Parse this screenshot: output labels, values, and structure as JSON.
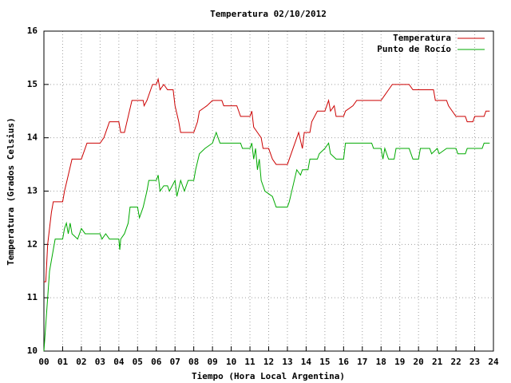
{
  "chart_data": {
    "type": "line",
    "title": "Temperatura 02/10/2012",
    "xlabel": "Tiempo (Hora Local Argentina)",
    "ylabel": "Temperatura (Grados Celsius)",
    "xlim": [
      0,
      24
    ],
    "ylim": [
      10,
      16
    ],
    "xticks": [
      {
        "value": 0,
        "label": "00"
      },
      {
        "value": 1,
        "label": "01"
      },
      {
        "value": 2,
        "label": "02"
      },
      {
        "value": 3,
        "label": "03"
      },
      {
        "value": 4,
        "label": "04"
      },
      {
        "value": 5,
        "label": "05"
      },
      {
        "value": 6,
        "label": "06"
      },
      {
        "value": 7,
        "label": "07"
      },
      {
        "value": 8,
        "label": "08"
      },
      {
        "value": 9,
        "label": "09"
      },
      10,
      11,
      12,
      13,
      14,
      15,
      16,
      17,
      18,
      19,
      20,
      21,
      22,
      23,
      24
    ],
    "yticks": [
      10,
      11,
      12,
      13,
      14,
      15,
      16
    ],
    "grid": true,
    "legend": "top-right",
    "series": [
      {
        "name": "Temperatura",
        "color": "#cc0000",
        "x": [
          0.0,
          0.1,
          0.2,
          0.4,
          0.5,
          1.0,
          1.1,
          1.3,
          1.5,
          2.0,
          2.2,
          2.3,
          3.0,
          3.2,
          3.4,
          3.5,
          4.0,
          4.1,
          4.3,
          4.5,
          4.7,
          5.3,
          5.35,
          5.5,
          5.7,
          5.8,
          6.0,
          6.1,
          6.2,
          6.4,
          6.6,
          6.9,
          7.0,
          7.2,
          7.3,
          8.0,
          8.2,
          8.3,
          8.7,
          9.0,
          9.5,
          9.6,
          10.3,
          10.4,
          10.5,
          11.0,
          11.1,
          11.2,
          11.4,
          11.6,
          11.7,
          12.0,
          12.2,
          12.4,
          13.0,
          13.1,
          13.3,
          13.6,
          13.8,
          13.9,
          14.2,
          14.3,
          14.6,
          15.0,
          15.1,
          15.2,
          15.3,
          15.5,
          15.6,
          16.0,
          16.1,
          16.5,
          16.7,
          18.0,
          18.2,
          18.4,
          18.6,
          19.5,
          19.7,
          20.8,
          20.9,
          21.5,
          21.6,
          21.8,
          22.0,
          22.5,
          22.6,
          22.9,
          23.0,
          23.5,
          23.6,
          23.8
        ],
        "values": [
          11.3,
          11.3,
          12.0,
          12.6,
          12.8,
          12.8,
          13.0,
          13.3,
          13.6,
          13.6,
          13.8,
          13.9,
          13.9,
          14.0,
          14.2,
          14.3,
          14.3,
          14.1,
          14.1,
          14.4,
          14.7,
          14.7,
          14.6,
          14.7,
          14.9,
          15.0,
          15.0,
          15.1,
          14.9,
          15.0,
          14.9,
          14.9,
          14.6,
          14.3,
          14.1,
          14.1,
          14.3,
          14.5,
          14.6,
          14.7,
          14.7,
          14.6,
          14.6,
          14.5,
          14.4,
          14.4,
          14.5,
          14.2,
          14.1,
          14.0,
          13.8,
          13.8,
          13.6,
          13.5,
          13.5,
          13.6,
          13.8,
          14.1,
          13.8,
          14.1,
          14.1,
          14.3,
          14.5,
          14.5,
          14.6,
          14.7,
          14.5,
          14.6,
          14.4,
          14.4,
          14.5,
          14.6,
          14.7,
          14.7,
          14.8,
          14.9,
          15.0,
          15.0,
          14.9,
          14.9,
          14.7,
          14.7,
          14.6,
          14.5,
          14.4,
          14.4,
          14.3,
          14.3,
          14.4,
          14.4,
          14.5,
          14.5
        ]
      },
      {
        "name": "Punto de Rocío",
        "color": "#00aa00",
        "x": [
          0.0,
          0.1,
          0.2,
          0.3,
          0.4,
          0.5,
          0.6,
          1.0,
          1.1,
          1.2,
          1.3,
          1.4,
          1.5,
          1.8,
          2.0,
          2.2,
          3.0,
          3.1,
          3.3,
          3.5,
          4.0,
          4.05,
          4.1,
          4.3,
          4.5,
          4.6,
          5.0,
          5.1,
          5.3,
          5.5,
          5.6,
          6.0,
          6.1,
          6.2,
          6.4,
          6.6,
          6.7,
          7.0,
          7.1,
          7.3,
          7.5,
          7.7,
          8.0,
          8.1,
          8.3,
          8.6,
          9.0,
          9.2,
          9.4,
          10.5,
          10.6,
          11.0,
          11.1,
          11.2,
          11.3,
          11.4,
          11.5,
          11.6,
          11.8,
          12.2,
          12.4,
          13.0,
          13.1,
          13.3,
          13.5,
          13.7,
          13.8,
          14.1,
          14.2,
          14.6,
          14.7,
          15.0,
          15.2,
          15.3,
          15.6,
          16.0,
          16.1,
          17.5,
          17.6,
          18.0,
          18.1,
          18.2,
          18.4,
          18.7,
          18.8,
          19.5,
          19.7,
          20.0,
          20.1,
          20.6,
          20.7,
          21.0,
          21.1,
          21.5,
          22.0,
          22.1,
          22.5,
          22.6,
          23.4,
          23.5,
          23.8
        ],
        "values": [
          10.0,
          10.5,
          11.0,
          11.5,
          11.7,
          11.9,
          12.1,
          12.1,
          12.3,
          12.4,
          12.2,
          12.4,
          12.2,
          12.1,
          12.3,
          12.2,
          12.2,
          12.1,
          12.2,
          12.1,
          12.1,
          11.9,
          12.1,
          12.2,
          12.4,
          12.7,
          12.7,
          12.5,
          12.7,
          13.0,
          13.2,
          13.2,
          13.3,
          13.0,
          13.1,
          13.1,
          13.0,
          13.2,
          12.9,
          13.2,
          13.0,
          13.2,
          13.2,
          13.4,
          13.7,
          13.8,
          13.9,
          14.1,
          13.9,
          13.9,
          13.8,
          13.8,
          13.9,
          13.6,
          13.8,
          13.4,
          13.6,
          13.2,
          13.0,
          12.9,
          12.7,
          12.7,
          12.8,
          13.1,
          13.4,
          13.3,
          13.4,
          13.4,
          13.6,
          13.6,
          13.7,
          13.8,
          13.9,
          13.7,
          13.6,
          13.6,
          13.9,
          13.9,
          13.8,
          13.8,
          13.6,
          13.8,
          13.6,
          13.6,
          13.8,
          13.8,
          13.6,
          13.6,
          13.8,
          13.8,
          13.7,
          13.8,
          13.7,
          13.8,
          13.8,
          13.7,
          13.7,
          13.8,
          13.8,
          13.9,
          13.9
        ]
      }
    ]
  }
}
